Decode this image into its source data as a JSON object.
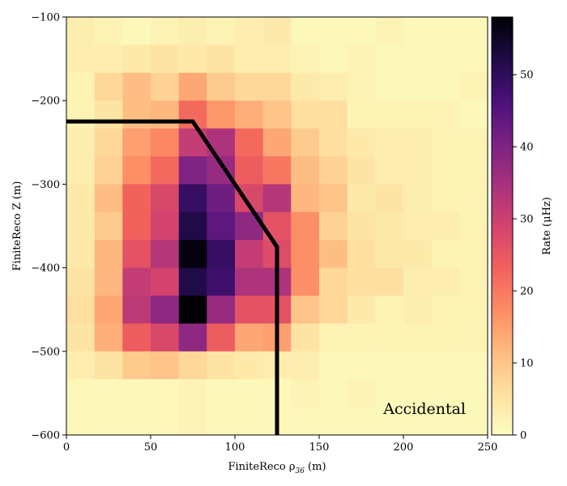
{
  "chart_data": {
    "type": "heatmap",
    "title": "",
    "xlabel": "FiniteReco ρ",
    "xlabel_sub": "36",
    "xlabel_unit": " (m)",
    "ylabel": "FiniteReco Z (m)",
    "colorbar_label": "Rate (μHz)",
    "annotation": "Accidental",
    "xlim": [
      0,
      250
    ],
    "ylim": [
      -600,
      -100
    ],
    "x_ticks": [
      0,
      50,
      100,
      150,
      200,
      250
    ],
    "y_ticks": [
      -100,
      -200,
      -300,
      -400,
      -500,
      -600
    ],
    "colorbar_ticks": [
      0,
      10,
      20,
      30,
      40,
      50
    ],
    "colorbar_range": [
      0,
      58
    ],
    "colormap": "magma_r",
    "x_edges": [
      0,
      16.7,
      33.3,
      50,
      66.7,
      83.3,
      100,
      116.7,
      133.3,
      150,
      166.7,
      183.3,
      200,
      216.7,
      233.3,
      250
    ],
    "y_edges": [
      -100,
      -133.3,
      -166.7,
      -200,
      -233.3,
      -266.7,
      -300,
      -333.3,
      -366.7,
      -400,
      -433.3,
      -466.7,
      -500,
      -533.3,
      -566.7,
      -600
    ],
    "values": [
      [
        3,
        2,
        1,
        2,
        3,
        2,
        3,
        4,
        1,
        1,
        1,
        2,
        1,
        1,
        1
      ],
      [
        3,
        3,
        4,
        5,
        4,
        5,
        3,
        3,
        2,
        1,
        2,
        1,
        1,
        1,
        1
      ],
      [
        2,
        7,
        11,
        8,
        14,
        9,
        7,
        7,
        4,
        3,
        2,
        1,
        1,
        1,
        2
      ],
      [
        2,
        5,
        11,
        12,
        22,
        16,
        13,
        10,
        6,
        6,
        2,
        2,
        2,
        2,
        1
      ],
      [
        3,
        7,
        15,
        18,
        31,
        34,
        22,
        14,
        9,
        6,
        4,
        3,
        3,
        2,
        2
      ],
      [
        3,
        8,
        17,
        22,
        40,
        37,
        24,
        20,
        11,
        8,
        5,
        3,
        3,
        2,
        2
      ],
      [
        4,
        11,
        23,
        28,
        49,
        42,
        28,
        33,
        12,
        10,
        4,
        5,
        3,
        2,
        2
      ],
      [
        4,
        9,
        23,
        29,
        52,
        44,
        38,
        26,
        17,
        8,
        5,
        4,
        3,
        3,
        2
      ],
      [
        4,
        12,
        26,
        33,
        57,
        49,
        31,
        27,
        17,
        11,
        6,
        4,
        4,
        2,
        2
      ],
      [
        5,
        12,
        31,
        29,
        52,
        48,
        34,
        34,
        17,
        7,
        6,
        6,
        3,
        3,
        2
      ],
      [
        6,
        14,
        32,
        38,
        58,
        37,
        26,
        26,
        10,
        7,
        4,
        2,
        3,
        2,
        2
      ],
      [
        5,
        13,
        24,
        28,
        38,
        24,
        14,
        15,
        5,
        2,
        2,
        2,
        2,
        2,
        2
      ],
      [
        3,
        5,
        9,
        10,
        7,
        5,
        4,
        3,
        3,
        1,
        1,
        1,
        1,
        1,
        1
      ],
      [
        1,
        1,
        1,
        1,
        2,
        1,
        1,
        1,
        2,
        1,
        2,
        1,
        1,
        1,
        1
      ],
      [
        1,
        1,
        1,
        1,
        2,
        1,
        1,
        1,
        1,
        1,
        1,
        1,
        1,
        1,
        1
      ]
    ],
    "boundary": {
      "x": [
        0,
        75,
        125,
        125
      ],
      "y": [
        -225,
        -225,
        -375,
        -600
      ],
      "color": "#000000"
    },
    "grid": false,
    "legend": "none"
  }
}
